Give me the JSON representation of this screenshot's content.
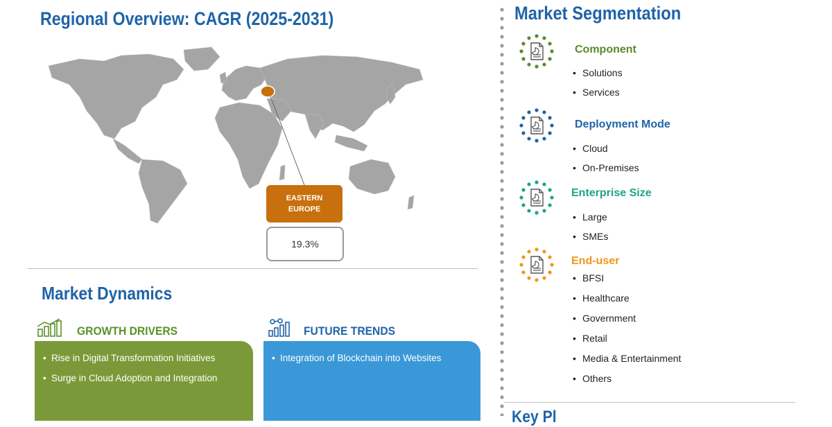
{
  "regional": {
    "title": "Regional Overview: CAGR (2025-2031)",
    "region_line1": "EASTERN",
    "region_line2": "EUROPE",
    "cagr_value": "19.3%"
  },
  "dynamics": {
    "title": "Market Dynamics",
    "growth_drivers": {
      "heading": "GROWTH DRIVERS",
      "items": [
        "Rise in Digital Transformation Initiatives",
        "Surge in Cloud Adoption and Integration"
      ]
    },
    "future_trends": {
      "heading": "FUTURE TRENDS",
      "items": [
        "Integration of Blockchain into Websites"
      ]
    }
  },
  "segmentation": {
    "title": "Market Segmentation",
    "groups": [
      {
        "heading": "Component",
        "color": "#5a8a2a",
        "items": [
          "Solutions",
          "Services"
        ]
      },
      {
        "heading": "Deployment Mode",
        "color": "#1f63a8",
        "items": [
          "Cloud",
          "On-Premises"
        ]
      },
      {
        "heading": "Enterprise Size",
        "color": "#1fa389",
        "items": [
          "Large",
          "SMEs"
        ]
      },
      {
        "heading": "End-user",
        "color": "#f2961a",
        "items": [
          "BFSI",
          "Healthcare",
          "Government",
          "Retail",
          "Media & Entertainment",
          "Others"
        ]
      }
    ]
  },
  "key_players": {
    "title": "Key Pl"
  },
  "colors": {
    "title_blue": "#1f63a8",
    "map_grey": "#a5a5a5",
    "highlight_orange": "#c8700e",
    "growth_green": "#7a9a39",
    "trends_blue": "#3a98d8"
  }
}
